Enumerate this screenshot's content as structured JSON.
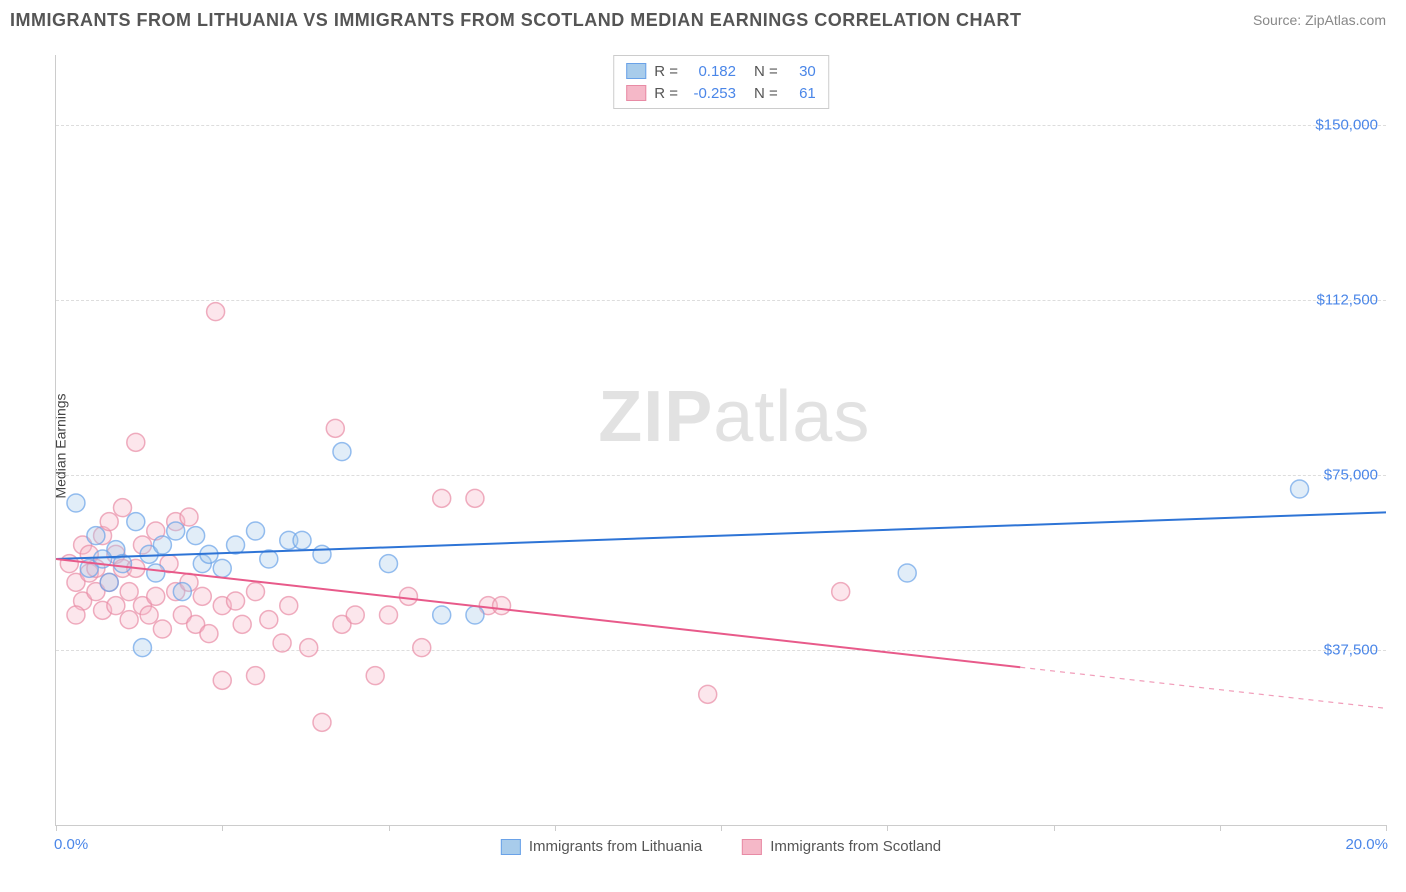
{
  "title": "IMMIGRANTS FROM LITHUANIA VS IMMIGRANTS FROM SCOTLAND MEDIAN EARNINGS CORRELATION CHART",
  "source": "Source: ZipAtlas.com",
  "watermark_bold": "ZIP",
  "watermark_light": "atlas",
  "chart": {
    "type": "scatter",
    "ylabel": "Median Earnings",
    "xlim": [
      0.0,
      20.0
    ],
    "ylim": [
      0,
      165000
    ],
    "x_tick_start_label": "0.0%",
    "x_tick_end_label": "20.0%",
    "x_tick_positions": [
      0,
      2.5,
      5.0,
      7.5,
      10.0,
      12.5,
      15.0,
      17.5,
      20.0
    ],
    "y_ticks": [
      {
        "value": 37500,
        "label": "$37,500"
      },
      {
        "value": 75000,
        "label": "$75,000"
      },
      {
        "value": 112500,
        "label": "$112,500"
      },
      {
        "value": 150000,
        "label": "$150,000"
      }
    ],
    "grid_color": "#dddddd",
    "axis_color": "#cccccc",
    "background_color": "#ffffff",
    "label_color": "#4a86e8",
    "text_color": "#555555",
    "title_fontsize": 18,
    "label_fontsize": 14,
    "tick_fontsize": 15,
    "marker_radius": 9,
    "marker_opacity": 0.35,
    "line_width": 2,
    "series": [
      {
        "name": "Immigrants from Lithuania",
        "color_stroke": "#6aa2e8",
        "color_fill": "#a8cceb",
        "line_color": "#2e74d6",
        "R": "0.182",
        "N": "30",
        "trend": {
          "x0": 0,
          "y0": 57000,
          "x1": 20,
          "y1": 67000,
          "solid_until": 20
        },
        "points": [
          [
            0.3,
            69000
          ],
          [
            0.5,
            55000
          ],
          [
            0.6,
            62000
          ],
          [
            0.8,
            52000
          ],
          [
            0.9,
            59000
          ],
          [
            1.0,
            56000
          ],
          [
            1.2,
            65000
          ],
          [
            1.3,
            38000
          ],
          [
            1.4,
            58000
          ],
          [
            1.5,
            54000
          ],
          [
            1.6,
            60000
          ],
          [
            1.8,
            63000
          ],
          [
            1.9,
            50000
          ],
          [
            2.1,
            62000
          ],
          [
            2.2,
            56000
          ],
          [
            2.3,
            58000
          ],
          [
            2.5,
            55000
          ],
          [
            2.7,
            60000
          ],
          [
            3.0,
            63000
          ],
          [
            3.2,
            57000
          ],
          [
            3.5,
            61000
          ],
          [
            3.7,
            61000
          ],
          [
            4.0,
            58000
          ],
          [
            4.3,
            80000
          ],
          [
            5.0,
            56000
          ],
          [
            5.8,
            45000
          ],
          [
            6.3,
            45000
          ],
          [
            12.8,
            54000
          ],
          [
            18.7,
            72000
          ],
          [
            0.7,
            57000
          ]
        ]
      },
      {
        "name": "Immigrants from Scotland",
        "color_stroke": "#e88ba5",
        "color_fill": "#f5b8c8",
        "line_color": "#e85a8a",
        "R": "-0.253",
        "N": "61",
        "trend": {
          "x0": 0,
          "y0": 57000,
          "x1": 20,
          "y1": 25000,
          "solid_until": 14.5
        },
        "points": [
          [
            0.2,
            56000
          ],
          [
            0.3,
            52000
          ],
          [
            0.4,
            60000
          ],
          [
            0.4,
            48000
          ],
          [
            0.5,
            54000
          ],
          [
            0.5,
            58000
          ],
          [
            0.6,
            55000
          ],
          [
            0.6,
            50000
          ],
          [
            0.7,
            62000
          ],
          [
            0.7,
            46000
          ],
          [
            0.8,
            52000
          ],
          [
            0.8,
            65000
          ],
          [
            0.9,
            47000
          ],
          [
            0.9,
            58000
          ],
          [
            1.0,
            55000
          ],
          [
            1.0,
            68000
          ],
          [
            1.1,
            44000
          ],
          [
            1.1,
            50000
          ],
          [
            1.2,
            82000
          ],
          [
            1.2,
            55000
          ],
          [
            1.3,
            47000
          ],
          [
            1.3,
            60000
          ],
          [
            1.4,
            45000
          ],
          [
            1.5,
            49000
          ],
          [
            1.5,
            63000
          ],
          [
            1.6,
            42000
          ],
          [
            1.7,
            56000
          ],
          [
            1.8,
            50000
          ],
          [
            1.8,
            65000
          ],
          [
            1.9,
            45000
          ],
          [
            2.0,
            52000
          ],
          [
            2.0,
            66000
          ],
          [
            2.1,
            43000
          ],
          [
            2.2,
            49000
          ],
          [
            2.3,
            41000
          ],
          [
            2.4,
            110000
          ],
          [
            2.5,
            47000
          ],
          [
            2.5,
            31000
          ],
          [
            2.7,
            48000
          ],
          [
            2.8,
            43000
          ],
          [
            3.0,
            32000
          ],
          [
            3.0,
            50000
          ],
          [
            3.2,
            44000
          ],
          [
            3.4,
            39000
          ],
          [
            3.5,
            47000
          ],
          [
            3.8,
            38000
          ],
          [
            4.0,
            22000
          ],
          [
            4.2,
            85000
          ],
          [
            4.3,
            43000
          ],
          [
            4.5,
            45000
          ],
          [
            4.8,
            32000
          ],
          [
            5.0,
            45000
          ],
          [
            5.3,
            49000
          ],
          [
            5.5,
            38000
          ],
          [
            5.8,
            70000
          ],
          [
            6.3,
            70000
          ],
          [
            6.5,
            47000
          ],
          [
            6.7,
            47000
          ],
          [
            9.8,
            28000
          ],
          [
            11.8,
            50000
          ],
          [
            0.3,
            45000
          ]
        ]
      }
    ],
    "legend_R_label": "R =",
    "legend_N_label": "N ="
  }
}
